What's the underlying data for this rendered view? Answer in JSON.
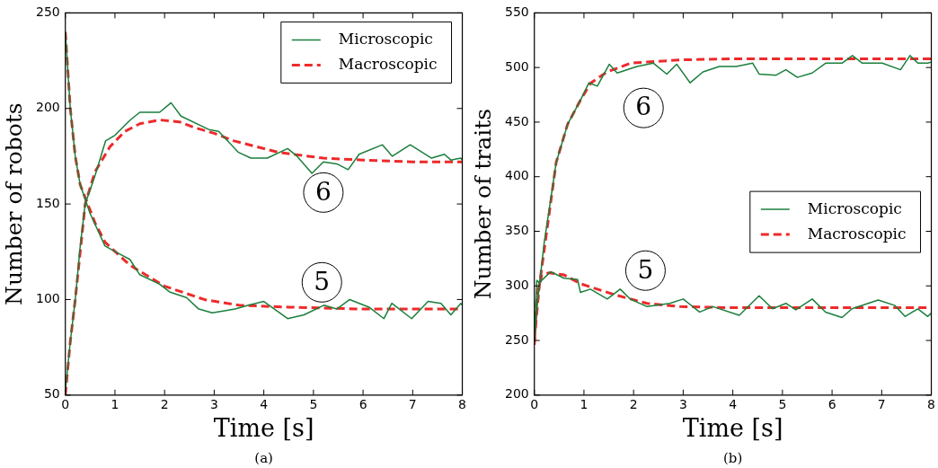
{
  "chart_data": [
    {
      "type": "line",
      "xlabel": "Time [s]",
      "ylabel": "Number of robots",
      "xlim": [
        0,
        8
      ],
      "ylim": [
        50,
        250
      ],
      "xticks": [
        0,
        1,
        2,
        3,
        4,
        5,
        6,
        7,
        8
      ],
      "yticks": [
        50,
        100,
        150,
        200,
        250
      ],
      "grid": false,
      "legend": "top right",
      "marker": "none",
      "annotations": [
        {
          "text": "6",
          "x": 5.2,
          "y": 156
        },
        {
          "text": "5",
          "x": 5.17,
          "y": 109
        },
        "(a)"
      ],
      "series": [
        {
          "name": "Microscopic",
          "color": "#1a7f3c",
          "line_style": "solid",
          "x": [
            0,
            0.1,
            0.2,
            0.3,
            0.4,
            0.6,
            0.81,
            1.0,
            1.31,
            1.5,
            1.9,
            2.13,
            2.33,
            2.89,
            3.09,
            3.49,
            3.74,
            4.07,
            4.48,
            4.67,
            4.97,
            5.2,
            5.47,
            5.7,
            5.92,
            6.39,
            6.59,
            6.95,
            7.38,
            7.64,
            7.77,
            7.97,
            8
          ],
          "values": [
            52,
            78,
            100,
            128,
            150,
            165,
            183,
            186,
            194,
            198,
            198,
            203,
            196,
            189,
            188,
            177,
            174,
            174,
            179,
            175,
            166,
            172,
            171,
            168,
            176,
            181,
            175,
            181,
            174,
            176,
            173,
            174,
            173
          ]
        },
        {
          "color": "#1a7f3c",
          "line_style": "solid",
          "x": [
            0,
            0.1,
            0.2,
            0.3,
            0.5,
            0.8,
            1.08,
            1.3,
            1.5,
            1.9,
            2.1,
            2.44,
            2.69,
            2.96,
            3.42,
            3.69,
            4.0,
            4.48,
            4.81,
            5.21,
            5.47,
            5.73,
            6.12,
            6.42,
            6.58,
            6.98,
            7.31,
            7.57,
            7.77,
            7.97,
            8
          ],
          "values": [
            240,
            200,
            175,
            160,
            145,
            128,
            124,
            121,
            113,
            108,
            104,
            101,
            95,
            93,
            95,
            97,
            99,
            90,
            92,
            97,
            95,
            100,
            96,
            90,
            98,
            90,
            99,
            98,
            92,
            98,
            97
          ]
        },
        {
          "name": "Macroscopic",
          "color": "#ee2a2a",
          "line_style": "dashed",
          "x": [
            0,
            0.1,
            0.2,
            0.4,
            0.6,
            0.9,
            1.2,
            1.5,
            1.9,
            2.3,
            2.6,
            3.0,
            3.4,
            4.3,
            5.2,
            6,
            7,
            8
          ],
          "values": [
            50,
            78,
            100,
            150,
            167,
            180,
            188,
            192,
            194,
            193,
            190,
            187,
            183,
            177,
            174,
            173,
            172,
            172
          ]
        },
        {
          "color": "#ee2a2a",
          "line_style": "dashed",
          "x": [
            0,
            0.1,
            0.2,
            0.3,
            0.45,
            0.6,
            0.8,
            1.3,
            2,
            2.8,
            3.5,
            4.5,
            6,
            8
          ],
          "values": [
            240,
            200,
            175,
            160,
            150,
            140,
            130,
            118,
            107,
            100,
            97,
            96,
            95,
            95
          ]
        }
      ]
    },
    {
      "type": "line",
      "xlabel": "Time [s]",
      "ylabel": "Number of traits",
      "xlim": [
        0,
        8
      ],
      "ylim": [
        200,
        550
      ],
      "xticks": [
        0,
        1,
        2,
        3,
        4,
        5,
        6,
        7,
        8
      ],
      "yticks": [
        200,
        250,
        300,
        350,
        400,
        450,
        500,
        550
      ],
      "grid": false,
      "legend": "right",
      "marker": "none",
      "annotations": [
        {
          "text": "6",
          "x": 2.2,
          "y": 463
        },
        {
          "text": "5",
          "x": 2.24,
          "y": 314
        },
        "(b)"
      ],
      "series": [
        {
          "name": "Microscopic",
          "color": "#1a7f3c",
          "line_style": "solid",
          "x": [
            0,
            0.05,
            0.1,
            0.2,
            0.3,
            0.44,
            0.67,
            0.94,
            1.1,
            1.27,
            1.51,
            1.67,
            2.07,
            2.4,
            2.67,
            2.87,
            3.14,
            3.4,
            3.73,
            4.07,
            4.4,
            4.53,
            4.87,
            5.07,
            5.3,
            5.6,
            5.87,
            6.2,
            6.41,
            6.61,
            7.01,
            7.38,
            7.57,
            7.73,
            7.93,
            8
          ],
          "values": [
            250,
            280,
            300,
            340,
            370,
            413,
            448,
            471,
            486,
            483,
            503,
            495,
            501,
            504,
            494,
            503,
            486,
            496,
            501,
            501,
            504,
            494,
            493,
            498,
            491,
            495,
            504,
            504,
            511,
            504,
            504,
            498,
            511,
            504,
            504,
            505
          ]
        },
        {
          "color": "#1a7f3c",
          "line_style": "solid",
          "x": [
            0,
            0.05,
            0.1,
            0.33,
            0.6,
            0.87,
            0.93,
            1.13,
            1.47,
            1.73,
            1.93,
            2.27,
            2.73,
            3.0,
            3.33,
            3.6,
            4.13,
            4.53,
            4.8,
            5.07,
            5.27,
            5.6,
            5.87,
            6.2,
            6.4,
            6.93,
            7.27,
            7.47,
            7.73,
            7.93,
            8
          ],
          "values": [
            250,
            305,
            303,
            313,
            307,
            306,
            294,
            297,
            288,
            297,
            288,
            281,
            284,
            288,
            276,
            281,
            273,
            291,
            279,
            284,
            278,
            288,
            276,
            271,
            279,
            287,
            282,
            272,
            279,
            272,
            275
          ]
        },
        {
          "name": "Macroscopic",
          "color": "#ee2a2a",
          "line_style": "dashed",
          "x": [
            0,
            0.1,
            0.25,
            0.44,
            0.67,
            0.94,
            1.14,
            1.47,
            1.94,
            2.27,
            2.94,
            4,
            5,
            8
          ],
          "values": [
            250,
            300,
            350,
            413,
            448,
            471,
            486,
            496,
            504,
            505,
            507,
            508,
            508,
            508
          ]
        },
        {
          "color": "#ee2a2a",
          "line_style": "dashed",
          "x": [
            0,
            0.05,
            0.15,
            0.3,
            0.6,
            0.93,
            1.61,
            2.27,
            2.94,
            4,
            8
          ],
          "values": [
            246,
            290,
            310,
            312,
            310,
            302,
            292,
            284,
            281,
            280,
            280
          ]
        }
      ]
    }
  ]
}
